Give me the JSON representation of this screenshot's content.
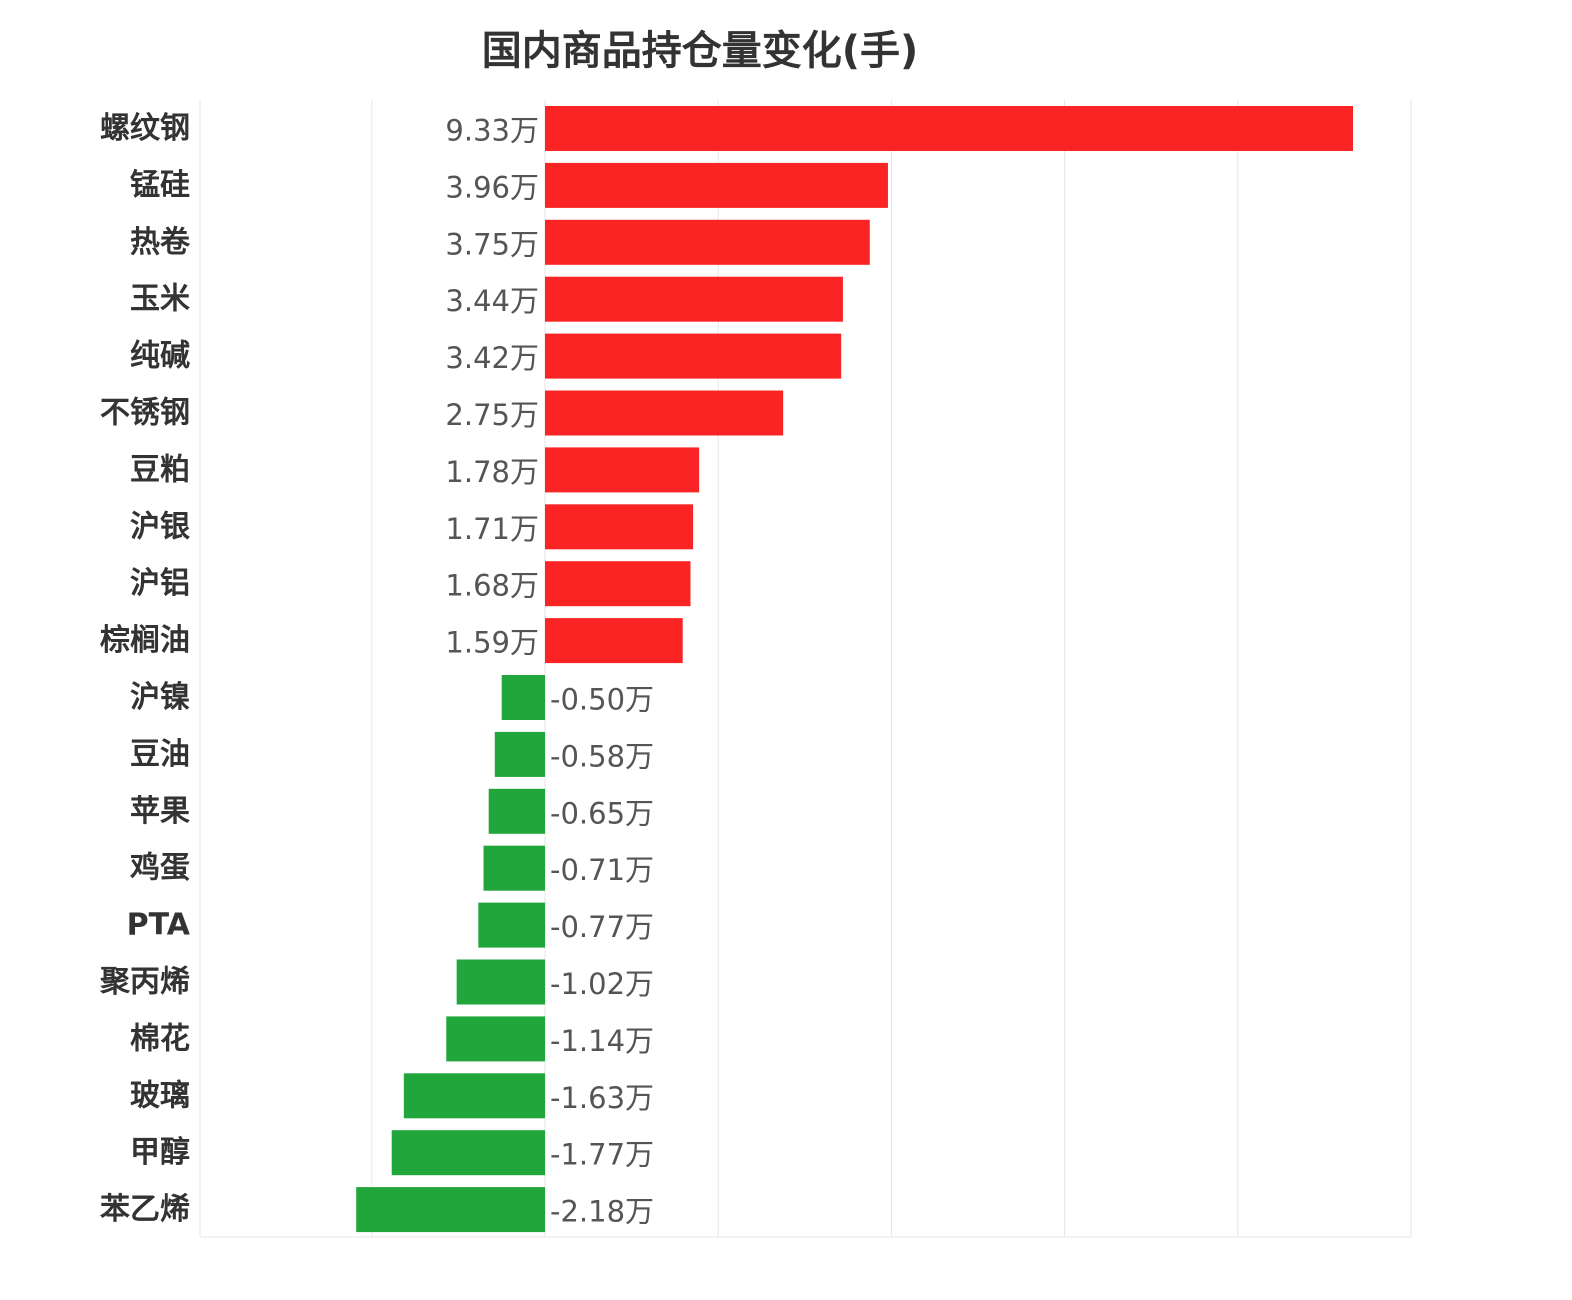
{
  "chart_data": {
    "type": "bar",
    "orientation": "horizontal",
    "title": "国内商品持仓量变化(手)",
    "xlabel": "",
    "ylabel": "",
    "unit_suffix": "万",
    "xlim": [
      -1,
      2.5
    ],
    "grid": true,
    "legend": "none",
    "colors": {
      "positive": "#fa2424",
      "negative": "#21a63b"
    },
    "categories": [
      "螺纹钢",
      "锰硅",
      "热卷",
      "玉米",
      "纯碱",
      "不锈钢",
      "豆粕",
      "沪银",
      "沪铝",
      "棕榈油",
      "沪镍",
      "豆油",
      "苹果",
      "鸡蛋",
      "PTA",
      "聚丙烯",
      "棉花",
      "玻璃",
      "甲醇",
      "苯乙烯"
    ],
    "values": [
      9.33,
      3.96,
      3.75,
      3.44,
      3.42,
      2.75,
      1.78,
      1.71,
      1.68,
      1.59,
      -0.5,
      -0.58,
      -0.65,
      -0.71,
      -0.77,
      -1.02,
      -1.14,
      -1.63,
      -1.77,
      -2.18
    ],
    "value_labels": [
      "9.33万",
      "3.96万",
      "3.75万",
      "3.44万",
      "3.42万",
      "2.75万",
      "1.78万",
      "1.71万",
      "1.68万",
      "1.59万",
      "-0.50万",
      "-0.58万",
      "-0.65万",
      "-0.71万",
      "-0.77万",
      "-1.02万",
      "-1.14万",
      "-1.63万",
      "-1.77万",
      "-2.18万"
    ]
  }
}
